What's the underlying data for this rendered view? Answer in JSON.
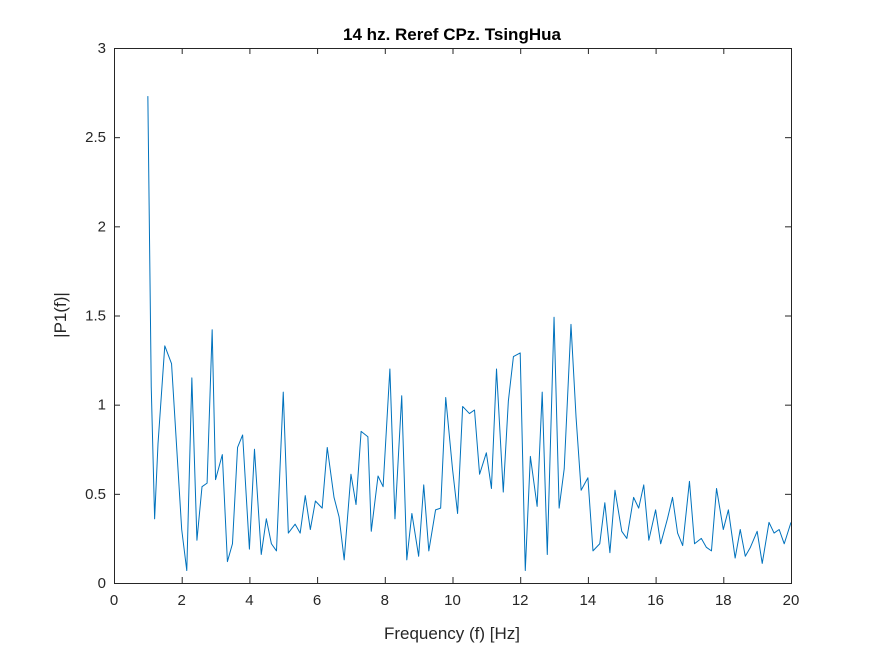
{
  "chart_data": {
    "type": "line",
    "title": "14 hz. Reref CPz. TsingHua",
    "xlabel": "Frequency (f) [Hz]",
    "ylabel": "|P1(f)|",
    "xlim": [
      0,
      20
    ],
    "ylim": [
      0,
      3
    ],
    "xticks": [
      "0",
      "2",
      "4",
      "6",
      "8",
      "10",
      "12",
      "14",
      "16",
      "18",
      "20"
    ],
    "yticks": [
      "0",
      "0.5",
      "1",
      "1.5",
      "2",
      "2.5",
      "3"
    ],
    "grid": false,
    "line_color": "#0072BD",
    "series": [
      {
        "x": [
          1.0,
          1.1,
          1.2,
          1.3,
          1.5,
          1.7,
          1.8,
          2.0,
          2.15,
          2.3,
          2.45,
          2.6,
          2.75,
          2.9,
          3.0,
          3.2,
          3.35,
          3.5,
          3.65,
          3.8,
          4.0,
          4.15,
          4.35,
          4.5,
          4.65,
          4.8,
          5.0,
          5.15,
          5.35,
          5.5,
          5.65,
          5.8,
          5.95,
          6.15,
          6.3,
          6.5,
          6.65,
          6.8,
          7.0,
          7.15,
          7.3,
          7.5,
          7.6,
          7.8,
          7.95,
          8.15,
          8.3,
          8.5,
          8.65,
          8.8,
          9.0,
          9.15,
          9.3,
          9.5,
          9.65,
          9.8,
          10.0,
          10.15,
          10.3,
          10.5,
          10.65,
          10.8,
          11.0,
          11.15,
          11.3,
          11.5,
          11.65,
          11.8,
          12.0,
          12.15,
          12.3,
          12.5,
          12.65,
          12.8,
          13.0,
          13.15,
          13.3,
          13.5,
          13.65,
          13.8,
          14.0,
          14.15,
          14.35,
          14.5,
          14.65,
          14.8,
          15.0,
          15.15,
          15.35,
          15.5,
          15.65,
          15.8,
          16.0,
          16.15,
          16.35,
          16.5,
          16.65,
          16.8,
          17.0,
          17.15,
          17.35,
          17.5,
          17.65,
          17.8,
          18.0,
          18.15,
          18.35,
          18.5,
          18.65,
          18.8,
          19.0,
          19.15,
          19.35,
          19.5,
          19.65,
          19.8,
          20.0
        ],
        "values": [
          2.73,
          1.1,
          0.36,
          0.78,
          1.33,
          1.23,
          0.92,
          0.3,
          0.07,
          1.15,
          0.24,
          0.54,
          0.56,
          1.42,
          0.58,
          0.72,
          0.12,
          0.22,
          0.76,
          0.83,
          0.19,
          0.75,
          0.16,
          0.36,
          0.22,
          0.18,
          1.07,
          0.28,
          0.33,
          0.28,
          0.49,
          0.3,
          0.46,
          0.42,
          0.76,
          0.48,
          0.37,
          0.13,
          0.61,
          0.44,
          0.85,
          0.82,
          0.29,
          0.6,
          0.54,
          1.2,
          0.36,
          1.05,
          0.13,
          0.39,
          0.15,
          0.55,
          0.18,
          0.41,
          0.42,
          1.04,
          0.64,
          0.39,
          0.99,
          0.95,
          0.97,
          0.61,
          0.73,
          0.53,
          1.2,
          0.51,
          1.02,
          1.27,
          1.29,
          0.07,
          0.71,
          0.43,
          1.07,
          0.16,
          1.49,
          0.42,
          0.64,
          1.45,
          0.93,
          0.52,
          0.59,
          0.18,
          0.22,
          0.45,
          0.17,
          0.52,
          0.29,
          0.25,
          0.48,
          0.42,
          0.55,
          0.24,
          0.41,
          0.22,
          0.36,
          0.48,
          0.28,
          0.21,
          0.57,
          0.22,
          0.25,
          0.2,
          0.18,
          0.53,
          0.3,
          0.41,
          0.14,
          0.3,
          0.15,
          0.2,
          0.29,
          0.11,
          0.34,
          0.28,
          0.3,
          0.22,
          0.34
        ]
      }
    ]
  }
}
